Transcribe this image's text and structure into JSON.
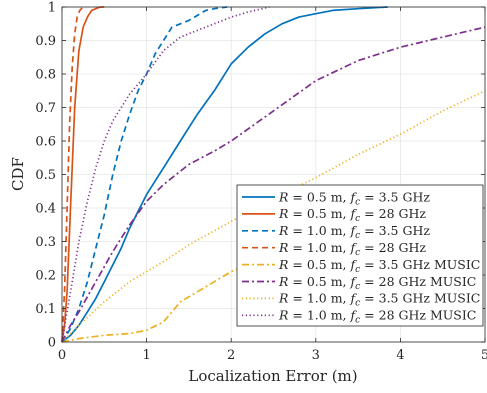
{
  "chart_data": {
    "type": "line",
    "xlabel": "Localization Error (m)",
    "ylabel": "CDF",
    "xlim": [
      0,
      5
    ],
    "ylim": [
      0,
      1
    ],
    "xticks": [
      "0",
      "1",
      "2",
      "3",
      "4",
      "5"
    ],
    "yticks": [
      "0",
      "0.1",
      "0.2",
      "0.3",
      "0.4",
      "0.5",
      "0.6",
      "0.7",
      "0.8",
      "0.9",
      "1"
    ],
    "grid": true,
    "legend_position": "bottom-right",
    "series": [
      {
        "name": "R = 0.5 m, f_c = 3.5 GHz",
        "color": "#0072BD",
        "dash": "solid",
        "x": [
          0,
          0.1,
          0.2,
          0.3,
          0.4,
          0.5,
          0.6,
          0.7,
          0.8,
          0.9,
          1.0,
          1.2,
          1.4,
          1.6,
          1.8,
          2.0,
          2.2,
          2.4,
          2.6,
          2.8,
          3.0,
          3.2,
          3.5,
          3.85
        ],
        "y": [
          0,
          0.02,
          0.05,
          0.09,
          0.13,
          0.18,
          0.23,
          0.28,
          0.34,
          0.39,
          0.44,
          0.52,
          0.6,
          0.68,
          0.75,
          0.83,
          0.88,
          0.92,
          0.95,
          0.97,
          0.98,
          0.99,
          0.995,
          1.0
        ]
      },
      {
        "name": "R = 0.5 m, f_c = 28 GHz",
        "color": "#D95319",
        "dash": "solid",
        "x": [
          0,
          0.03,
          0.06,
          0.1,
          0.15,
          0.2,
          0.25,
          0.3,
          0.35,
          0.4,
          0.45,
          0.5
        ],
        "y": [
          0,
          0.05,
          0.15,
          0.4,
          0.7,
          0.87,
          0.94,
          0.97,
          0.99,
          0.995,
          1.0,
          1.0
        ]
      },
      {
        "name": "R = 1.0 m, f_c = 3.5 GHz",
        "color": "#0072BD",
        "dash": "dashed",
        "x": [
          0,
          0.1,
          0.2,
          0.3,
          0.4,
          0.5,
          0.6,
          0.7,
          0.8,
          0.9,
          1.0,
          1.1,
          1.2,
          1.3,
          1.4,
          1.5,
          1.6,
          1.7,
          1.8,
          1.95
        ],
        "y": [
          0,
          0.04,
          0.1,
          0.18,
          0.28,
          0.38,
          0.5,
          0.6,
          0.68,
          0.75,
          0.8,
          0.86,
          0.9,
          0.94,
          0.95,
          0.96,
          0.975,
          0.99,
          0.995,
          1.0
        ]
      },
      {
        "name": "R = 1.0 m, f_c = 28 GHz",
        "color": "#D95319",
        "dash": "dashed",
        "x": [
          0,
          0.03,
          0.06,
          0.09,
          0.12,
          0.15,
          0.18,
          0.21,
          0.25
        ],
        "y": [
          0,
          0.15,
          0.4,
          0.65,
          0.82,
          0.92,
          0.97,
          0.99,
          1.0
        ]
      },
      {
        "name": "R = 0.5 m, f_c = 3.5 GHz MUSIC",
        "color": "#EDB120",
        "dash": "dashdot",
        "x": [
          0,
          0.2,
          0.5,
          0.8,
          1.0,
          1.2,
          1.4,
          1.6,
          1.8,
          2.0,
          2.2,
          2.5,
          2.7
        ],
        "y": [
          0,
          0.01,
          0.02,
          0.025,
          0.035,
          0.06,
          0.12,
          0.15,
          0.18,
          0.21,
          0.23,
          0.26,
          0.28
        ]
      },
      {
        "name": "R = 0.5 m, f_c = 28 GHz MUSIC",
        "color": "#7E2F8E",
        "dash": "dashdot",
        "x": [
          0,
          0.1,
          0.2,
          0.4,
          0.6,
          0.8,
          1.0,
          1.2,
          1.5,
          1.8,
          2.0,
          2.5,
          3.0,
          3.5,
          4.0,
          4.5,
          5.0
        ],
        "y": [
          0,
          0.05,
          0.09,
          0.18,
          0.27,
          0.35,
          0.42,
          0.47,
          0.53,
          0.57,
          0.6,
          0.69,
          0.78,
          0.84,
          0.88,
          0.91,
          0.94
        ]
      },
      {
        "name": "R = 1.0 m, f_c = 3.5 GHz MUSIC",
        "color": "#EDB120",
        "dash": "dotted",
        "x": [
          0,
          0.2,
          0.5,
          0.8,
          1.0,
          1.2,
          1.5,
          2.0,
          2.5,
          3.0,
          3.5,
          4.0,
          4.5,
          5.0
        ],
        "y": [
          0,
          0.05,
          0.12,
          0.18,
          0.21,
          0.24,
          0.29,
          0.36,
          0.43,
          0.49,
          0.56,
          0.62,
          0.69,
          0.75
        ]
      },
      {
        "name": "R = 1.0 m, f_c = 28 GHz MUSIC",
        "color": "#7E2F8E",
        "dash": "dotted",
        "x": [
          0,
          0.1,
          0.2,
          0.3,
          0.4,
          0.5,
          0.6,
          0.7,
          0.8,
          1.0,
          1.2,
          1.4,
          1.6,
          1.8,
          2.0,
          2.2,
          2.45
        ],
        "y": [
          0,
          0.15,
          0.3,
          0.42,
          0.52,
          0.6,
          0.66,
          0.7,
          0.74,
          0.8,
          0.87,
          0.91,
          0.93,
          0.95,
          0.97,
          0.985,
          1.0
        ]
      }
    ]
  },
  "legend": {
    "entries": [
      {
        "R": "0.5",
        "f": "3.5",
        "suffix": ""
      },
      {
        "R": "0.5",
        "f": "28",
        "suffix": ""
      },
      {
        "R": "1.0",
        "f": "3.5",
        "suffix": ""
      },
      {
        "R": "1.0",
        "f": "28",
        "suffix": ""
      },
      {
        "R": "0.5",
        "f": "3.5",
        "suffix": " MUSIC"
      },
      {
        "R": "0.5",
        "f": "28",
        "suffix": " MUSIC"
      },
      {
        "R": "1.0",
        "f": "3.5",
        "suffix": " MUSIC"
      },
      {
        "R": "1.0",
        "f": "28",
        "suffix": " MUSIC"
      }
    ]
  }
}
